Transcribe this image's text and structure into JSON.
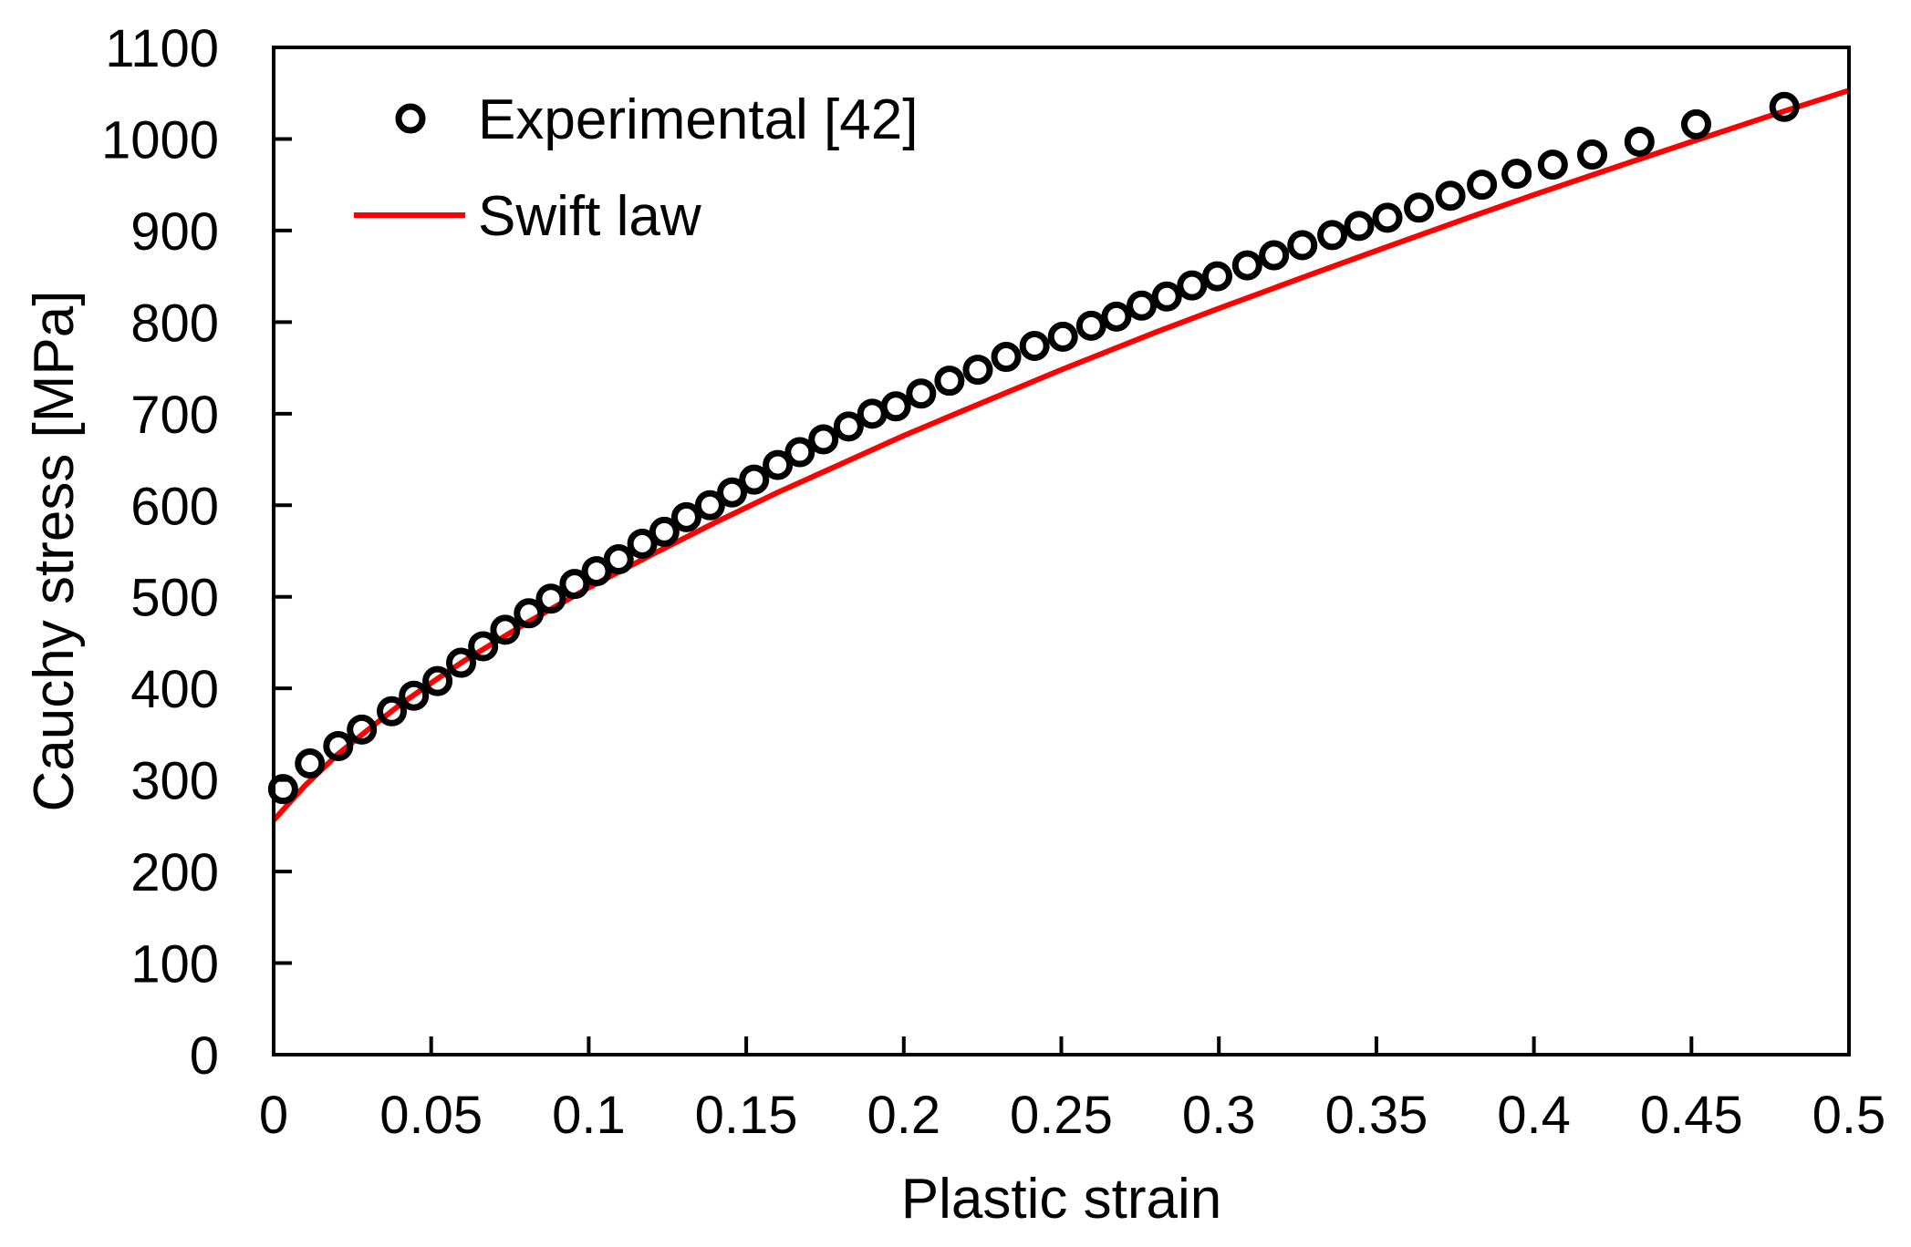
{
  "chart_data": {
    "type": "scatter",
    "title": "",
    "xlabel": "Plastic strain",
    "ylabel": "Cauchy stress [MPa]",
    "xlim": [
      0,
      0.5
    ],
    "ylim": [
      0,
      1100
    ],
    "xticks": [
      0,
      0.05,
      0.1,
      0.15,
      0.2,
      0.25,
      0.3,
      0.35,
      0.4,
      0.45,
      0.5
    ],
    "xtick_labels": [
      "0",
      "0.05",
      "0.1",
      "0.15",
      "0.2",
      "0.25",
      "0.3",
      "0.35",
      "0.4",
      "0.45",
      "0.5"
    ],
    "yticks": [
      0,
      100,
      200,
      300,
      400,
      500,
      600,
      700,
      800,
      900,
      1000,
      1100
    ],
    "ytick_labels": [
      "0",
      "100",
      "200",
      "300",
      "400",
      "500",
      "600",
      "700",
      "800",
      "900",
      "1000",
      "1100"
    ],
    "grid": false,
    "legend_position": "top-left",
    "series": [
      {
        "name": "Experimental [42]",
        "kind": "markers",
        "marker": "open-circle",
        "color": "#000000",
        "x": [
          0.003,
          0.0115,
          0.0205,
          0.028,
          0.0375,
          0.0445,
          0.052,
          0.0595,
          0.0665,
          0.0735,
          0.081,
          0.088,
          0.0955,
          0.1025,
          0.1095,
          0.117,
          0.124,
          0.131,
          0.1385,
          0.1455,
          0.1525,
          0.16,
          0.167,
          0.1745,
          0.1825,
          0.19,
          0.1975,
          0.2055,
          0.2145,
          0.2235,
          0.2325,
          0.2415,
          0.2505,
          0.2595,
          0.2675,
          0.2755,
          0.2835,
          0.2915,
          0.2995,
          0.309,
          0.3175,
          0.3265,
          0.336,
          0.3445,
          0.3535,
          0.3635,
          0.3735,
          0.3835,
          0.3945,
          0.406,
          0.4185,
          0.4335,
          0.4515,
          0.4795
        ],
        "y": [
          290,
          318,
          337,
          355,
          375,
          392,
          408,
          428,
          446,
          464,
          482,
          498,
          514,
          528,
          541,
          558,
          571,
          587,
          600,
          614,
          628,
          644,
          658,
          672,
          686,
          700,
          708,
          722,
          736,
          748,
          762,
          774,
          784,
          796,
          806,
          818,
          828,
          840,
          850,
          862,
          873,
          884,
          895,
          905,
          914,
          925,
          938,
          950,
          962,
          972,
          983,
          997,
          1016,
          1035
        ]
      },
      {
        "name": "Swift law",
        "kind": "line",
        "color": "#ff0000",
        "x": [
          0,
          0.01,
          0.02,
          0.03,
          0.04,
          0.05,
          0.06,
          0.08,
          0.1,
          0.12,
          0.14,
          0.16,
          0.18,
          0.2,
          0.22,
          0.25,
          0.28,
          0.3,
          0.33,
          0.35,
          0.38,
          0.4,
          0.43,
          0.45,
          0.48,
          0.5
        ],
        "y": [
          256,
          294,
          327,
          355,
          382,
          406,
          429,
          471,
          510,
          546,
          581,
          614,
          645,
          676,
          705,
          748,
          789,
          815,
          853,
          878,
          915,
          939,
          974,
          997,
          1031,
          1053
        ]
      }
    ]
  }
}
